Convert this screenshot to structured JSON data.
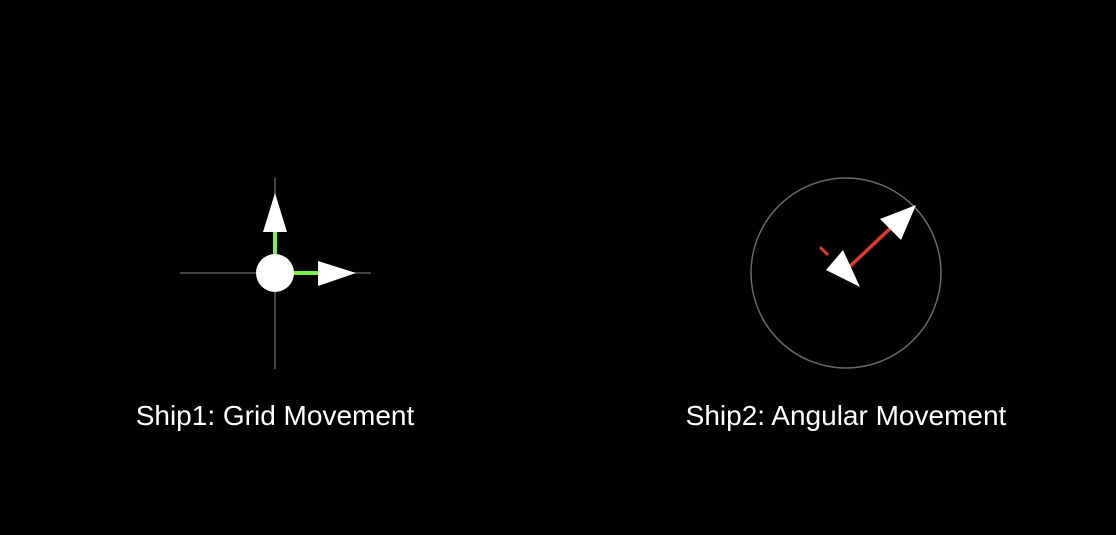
{
  "scene": {
    "background_color": "#000000",
    "ship1": {
      "caption": "Ship1: Grid Movement",
      "body_color": "#ffffff",
      "axis_color": "#5a5a5a",
      "up_vector_color": "#7cf04a",
      "right_vector_color": "#7cf04a",
      "arrow_color": "#ffffff",
      "icons": [
        "up-arrow-icon",
        "right-arrow-icon",
        "ship-body-circle"
      ]
    },
    "ship2": {
      "caption": "Ship2: Angular Movement",
      "orbit_color": "#6a6a6a",
      "heading_vector_color": "#e0382b",
      "arrow_color": "#ffffff",
      "heading_degrees": 45,
      "icons": [
        "forward-arrow-icon",
        "backward-arrow-icon",
        "orbit-circle"
      ]
    }
  }
}
